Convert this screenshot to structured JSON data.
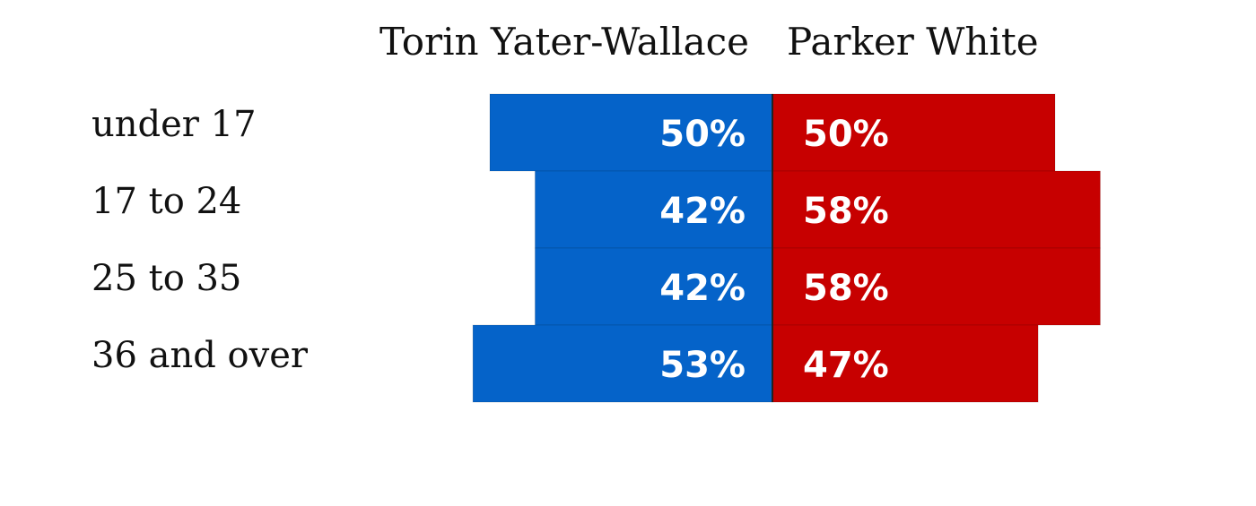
{
  "chart_data": {
    "type": "diverging-bar",
    "categories": [
      "under 17",
      "17 to 24",
      "25 to 35",
      "36 and over"
    ],
    "series": [
      {
        "name": "Torin Yater-Wallace",
        "color": "#0563c9",
        "values": [
          50,
          42,
          42,
          53
        ],
        "value_labels": [
          "50%",
          "42%",
          "42%",
          "53%"
        ]
      },
      {
        "name": "Parker White",
        "color": "#c70000",
        "values": [
          50,
          58,
          58,
          47
        ],
        "value_labels": [
          "50%",
          "58%",
          "58%",
          "47%"
        ]
      }
    ]
  }
}
